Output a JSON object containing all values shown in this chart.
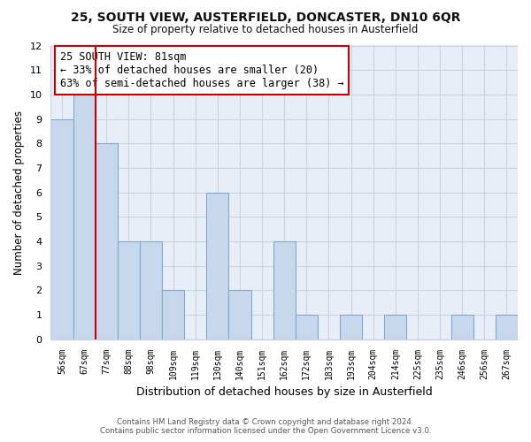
{
  "title": "25, SOUTH VIEW, AUSTERFIELD, DONCASTER, DN10 6QR",
  "subtitle": "Size of property relative to detached houses in Austerfield",
  "xlabel": "Distribution of detached houses by size in Austerfield",
  "ylabel": "Number of detached properties",
  "bin_labels": [
    "56sqm",
    "67sqm",
    "77sqm",
    "88sqm",
    "98sqm",
    "109sqm",
    "119sqm",
    "130sqm",
    "140sqm",
    "151sqm",
    "162sqm",
    "172sqm",
    "183sqm",
    "193sqm",
    "204sqm",
    "214sqm",
    "225sqm",
    "235sqm",
    "246sqm",
    "256sqm",
    "267sqm"
  ],
  "bar_heights": [
    9,
    10,
    8,
    4,
    4,
    2,
    0,
    6,
    2,
    0,
    4,
    1,
    0,
    1,
    0,
    1,
    0,
    0,
    1,
    0,
    1
  ],
  "bar_color": "#c8d8ec",
  "bar_edge_color": "#7fa8cc",
  "highlight_line_index": 2,
  "highlight_line_color": "#cc0000",
  "annotation_line1": "25 SOUTH VIEW: 81sqm",
  "annotation_line2": "← 33% of detached houses are smaller (20)",
  "annotation_line3": "63% of semi-detached houses are larger (38) →",
  "annotation_box_color": "#ffffff",
  "annotation_box_edge": "#cc0000",
  "ylim": [
    0,
    12
  ],
  "yticks": [
    0,
    1,
    2,
    3,
    4,
    5,
    6,
    7,
    8,
    9,
    10,
    11,
    12
  ],
  "grid_color": "#c8d4e4",
  "background_color": "#ffffff",
  "plot_bg_color": "#e8eef8",
  "footer1": "Contains HM Land Registry data © Crown copyright and database right 2024.",
  "footer2": "Contains public sector information licensed under the Open Government Licence v3.0."
}
